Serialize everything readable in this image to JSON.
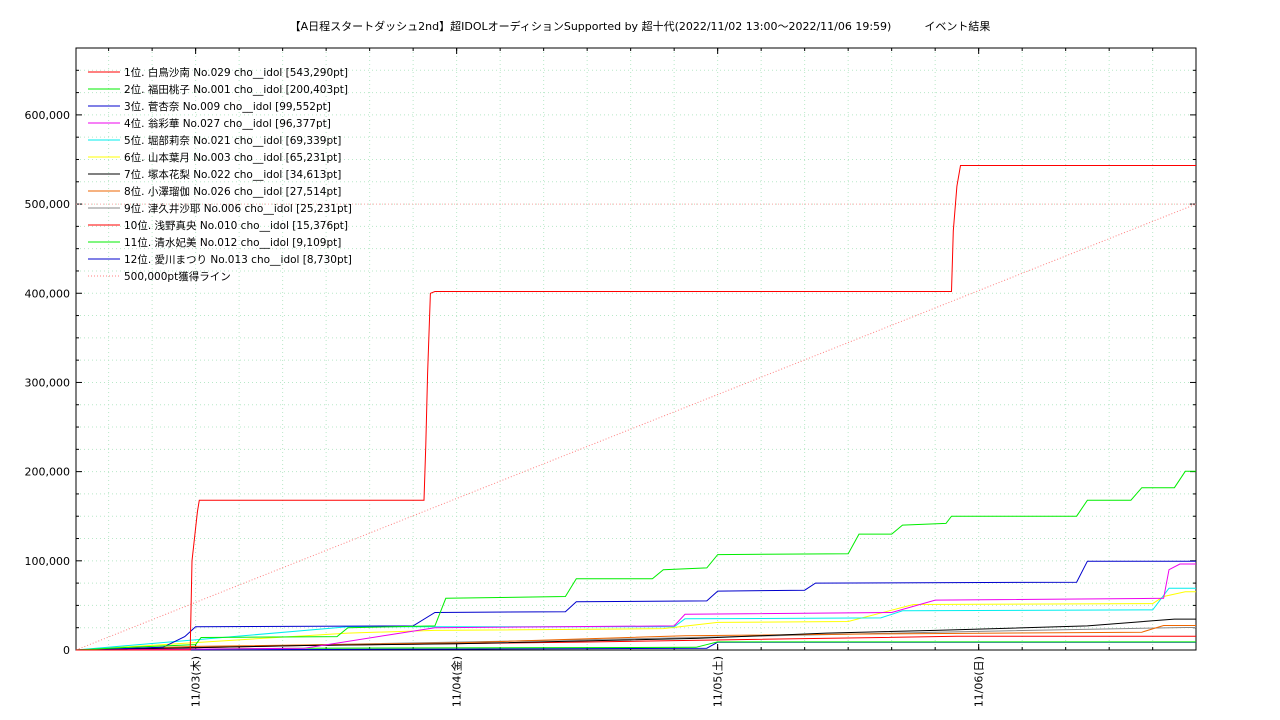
{
  "chart_data": {
    "type": "line",
    "title": "【A日程スタートダッシュ2nd】超IDOLオーディションSupported by 超十代(2022/11/02 13:00～2022/11/06 19:59)　　　イベント結果",
    "xlabel": "",
    "ylabel": "",
    "x_range": [
      "2022-11-02 13:00",
      "2022-11-06 19:59"
    ],
    "ylim": [
      0,
      675000
    ],
    "yticks": [
      0,
      100000,
      200000,
      300000,
      400000,
      500000,
      600000
    ],
    "ytick_labels": [
      "0",
      "100,000",
      "200,000",
      "300,000",
      "400,000",
      "500,000",
      "600,000"
    ],
    "xticks": [
      "2022-11-03 00:00",
      "2022-11-04 00:00",
      "2022-11-05 00:00",
      "2022-11-06 00:00"
    ],
    "xtick_labels": [
      "11/03(木)",
      "11/04(金)",
      "11/05(土)",
      "11/06(日)"
    ],
    "grid": true,
    "legend_position": "top-left",
    "series": [
      {
        "name": "1位. 白鳥沙南 No.029 cho__idol [543,290pt]",
        "color": "#ff0000",
        "points": [
          [
            "2022-11-02 13:00",
            0
          ],
          [
            "2022-11-02 23:30",
            0
          ],
          [
            "2022-11-02 23:40",
            100000
          ],
          [
            "2022-11-03 00:10",
            155000
          ],
          [
            "2022-11-03 00:20",
            168000
          ],
          [
            "2022-11-03 21:00",
            168000
          ],
          [
            "2022-11-03 21:10",
            230000
          ],
          [
            "2022-11-03 21:20",
            310000
          ],
          [
            "2022-11-03 21:35",
            400000
          ],
          [
            "2022-11-03 22:00",
            402000
          ],
          [
            "2022-11-05 21:30",
            402000
          ],
          [
            "2022-11-05 21:40",
            470000
          ],
          [
            "2022-11-05 22:00",
            520000
          ],
          [
            "2022-11-05 22:20",
            543290
          ],
          [
            "2022-11-06 19:59",
            543290
          ]
        ]
      },
      {
        "name": "2位. 福田桃子 No.001 cho__idol [200,403pt]",
        "color": "#00ee00",
        "points": [
          [
            "2022-11-02 13:00",
            0
          ],
          [
            "2022-11-02 18:00",
            3000
          ],
          [
            "2022-11-03 00:00",
            6000
          ],
          [
            "2022-11-03 00:30",
            14000
          ],
          [
            "2022-11-03 13:00",
            15000
          ],
          [
            "2022-11-03 14:00",
            25000
          ],
          [
            "2022-11-03 22:00",
            27000
          ],
          [
            "2022-11-03 23:00",
            58000
          ],
          [
            "2022-11-04 10:00",
            60000
          ],
          [
            "2022-11-04 11:00",
            80000
          ],
          [
            "2022-11-04 18:00",
            80000
          ],
          [
            "2022-11-04 19:00",
            90000
          ],
          [
            "2022-11-04 23:00",
            92000
          ],
          [
            "2022-11-05 00:00",
            107000
          ],
          [
            "2022-11-05 12:00",
            108000
          ],
          [
            "2022-11-05 13:00",
            130000
          ],
          [
            "2022-11-05 16:00",
            130000
          ],
          [
            "2022-11-05 17:00",
            140000
          ],
          [
            "2022-11-05 21:00",
            142000
          ],
          [
            "2022-11-05 21:30",
            150000
          ],
          [
            "2022-11-06 09:00",
            150000
          ],
          [
            "2022-11-06 10:00",
            168000
          ],
          [
            "2022-11-06 14:00",
            168000
          ],
          [
            "2022-11-06 15:00",
            182000
          ],
          [
            "2022-11-06 18:00",
            182000
          ],
          [
            "2022-11-06 19:00",
            200403
          ],
          [
            "2022-11-06 19:59",
            200403
          ]
        ]
      },
      {
        "name": "3位. 菅杏奈 No.009 cho__idol [99,552pt]",
        "color": "#0000cc",
        "points": [
          [
            "2022-11-02 13:00",
            0
          ],
          [
            "2022-11-02 21:00",
            3000
          ],
          [
            "2022-11-02 23:00",
            15000
          ],
          [
            "2022-11-03 00:00",
            26000
          ],
          [
            "2022-11-03 20:00",
            27000
          ],
          [
            "2022-11-03 22:00",
            42000
          ],
          [
            "2022-11-04 10:00",
            43000
          ],
          [
            "2022-11-04 11:00",
            54000
          ],
          [
            "2022-11-04 23:00",
            55000
          ],
          [
            "2022-11-05 00:00",
            66000
          ],
          [
            "2022-11-05 08:00",
            67000
          ],
          [
            "2022-11-05 09:00",
            75000
          ],
          [
            "2022-11-06 09:00",
            76000
          ],
          [
            "2022-11-06 10:00",
            99552
          ],
          [
            "2022-11-06 19:59",
            99552
          ]
        ]
      },
      {
        "name": "4位. 翁彩華 No.027 cho__idol [96,377pt]",
        "color": "#ee00ee",
        "points": [
          [
            "2022-11-02 13:00",
            0
          ],
          [
            "2022-11-03 10:00",
            2000
          ],
          [
            "2022-11-03 22:00",
            25000
          ],
          [
            "2022-11-04 20:00",
            27000
          ],
          [
            "2022-11-04 21:00",
            40000
          ],
          [
            "2022-11-05 16:00",
            42000
          ],
          [
            "2022-11-05 20:00",
            56000
          ],
          [
            "2022-11-06 17:00",
            58000
          ],
          [
            "2022-11-06 17:30",
            90000
          ],
          [
            "2022-11-06 18:30",
            96377
          ],
          [
            "2022-11-06 19:59",
            96377
          ]
        ]
      },
      {
        "name": "5位. 堀部莉奈 No.021 cho__idol [69,339pt]",
        "color": "#00eeee",
        "points": [
          [
            "2022-11-02 13:00",
            0
          ],
          [
            "2022-11-03 14:00",
            26000
          ],
          [
            "2022-11-04 20:00",
            26000
          ],
          [
            "2022-11-04 21:00",
            35000
          ],
          [
            "2022-11-05 15:00",
            36000
          ],
          [
            "2022-11-05 17:00",
            44000
          ],
          [
            "2022-11-06 16:00",
            45000
          ],
          [
            "2022-11-06 17:30",
            69339
          ],
          [
            "2022-11-06 19:59",
            69339
          ]
        ]
      },
      {
        "name": "6位. 山本葉月 No.003 cho__idol [65,231pt]",
        "color": "#ffff00",
        "points": [
          [
            "2022-11-02 13:00",
            0
          ],
          [
            "2022-11-03 14:00",
            19000
          ],
          [
            "2022-11-03 22:00",
            22000
          ],
          [
            "2022-11-04 19:00",
            24000
          ],
          [
            "2022-11-05 00:00",
            31000
          ],
          [
            "2022-11-05 12:00",
            32000
          ],
          [
            "2022-11-05 18:00",
            51000
          ],
          [
            "2022-11-06 16:00",
            52000
          ],
          [
            "2022-11-06 17:00",
            60000
          ],
          [
            "2022-11-06 19:00",
            65231
          ],
          [
            "2022-11-06 19:59",
            65231
          ]
        ]
      },
      {
        "name": "7位. 塚本花梨 No.022 cho__idol [34,613pt]",
        "color": "#000000",
        "points": [
          [
            "2022-11-02 13:00",
            0
          ],
          [
            "2022-11-03 10:00",
            5000
          ],
          [
            "2022-11-04 00:00",
            7000
          ],
          [
            "2022-11-04 22:00",
            13000
          ],
          [
            "2022-11-05 10:00",
            19000
          ],
          [
            "2022-11-05 20:00",
            22000
          ],
          [
            "2022-11-06 10:00",
            27000
          ],
          [
            "2022-11-06 18:00",
            34613
          ],
          [
            "2022-11-06 19:59",
            34613
          ]
        ]
      },
      {
        "name": "8位. 小澤瑠伽 No.026 cho__idol [27,514pt]",
        "color": "#ee6600",
        "points": [
          [
            "2022-11-02 13:00",
            0
          ],
          [
            "2022-11-03 00:00",
            4000
          ],
          [
            "2022-11-04 00:00",
            8000
          ],
          [
            "2022-11-04 21:00",
            16000
          ],
          [
            "2022-11-05 15:00",
            18000
          ],
          [
            "2022-11-06 15:00",
            20000
          ],
          [
            "2022-11-06 17:00",
            27514
          ],
          [
            "2022-11-06 19:59",
            27514
          ]
        ]
      },
      {
        "name": "9位. 津久井沙耶 No.006 cho__idol [25,231pt]",
        "color": "#888888",
        "points": [
          [
            "2022-11-02 13:00",
            0
          ],
          [
            "2022-11-03 12:00",
            6000
          ],
          [
            "2022-11-04 18:00",
            13000
          ],
          [
            "2022-11-05 20:00",
            20000
          ],
          [
            "2022-11-06 19:00",
            25231
          ],
          [
            "2022-11-06 19:59",
            25231
          ]
        ]
      },
      {
        "name": "10位. 浅野真央 No.010 cho__idol [15,376pt]",
        "color": "#ff0000",
        "points": [
          [
            "2022-11-02 13:00",
            0
          ],
          [
            "2022-11-03 10:00",
            5000
          ],
          [
            "2022-11-04 12:00",
            9000
          ],
          [
            "2022-11-05 22:00",
            15376
          ],
          [
            "2022-11-06 19:59",
            15376
          ]
        ]
      },
      {
        "name": "11位. 清水妃美 No.012 cho__idol [9,109pt]",
        "color": "#00ee00",
        "points": [
          [
            "2022-11-02 13:00",
            0
          ],
          [
            "2022-11-03 10:00",
            2000
          ],
          [
            "2022-11-04 22:00",
            3000
          ],
          [
            "2022-11-05 00:00",
            9109
          ],
          [
            "2022-11-06 19:59",
            9109
          ]
        ]
      },
      {
        "name": "12位. 愛川まつり No.013 cho__idol [8,730pt]",
        "color": "#0000cc",
        "points": [
          [
            "2022-11-02 13:00",
            0
          ],
          [
            "2022-11-04 00:00",
            1000
          ],
          [
            "2022-11-04 23:00",
            2000
          ],
          [
            "2022-11-05 00:00",
            8730
          ],
          [
            "2022-11-06 19:59",
            8730
          ]
        ]
      },
      {
        "name": "500,000pt獲得ライン",
        "color": "#ff8080",
        "dashed": true,
        "points": [
          [
            "2022-11-02 13:00",
            0
          ],
          [
            "2022-11-06 19:59",
            500000
          ]
        ]
      }
    ],
    "reference_line": {
      "y": 500000,
      "color": "#ffaaaa"
    }
  }
}
